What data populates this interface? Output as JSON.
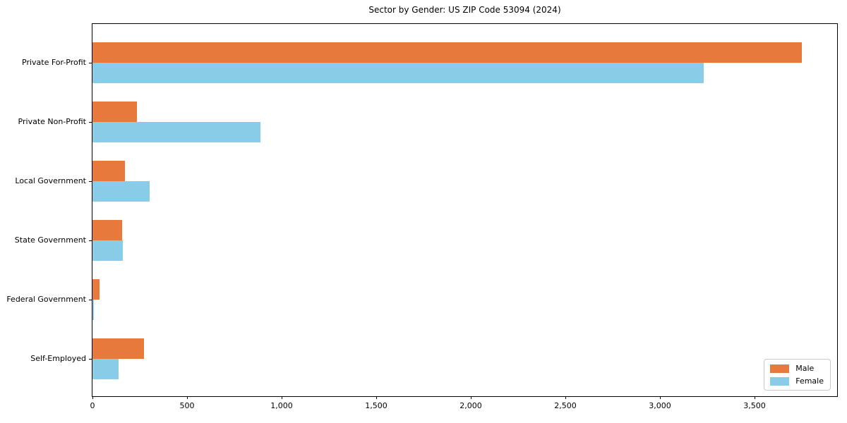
{
  "title": "Sector by Gender: US ZIP Code 53094 (2024)",
  "colors": {
    "male": "#e8793c",
    "female": "#88cce8",
    "axis": "#000000",
    "legend_border": "#c9c9c9",
    "background": "#ffffff"
  },
  "chart_data": {
    "type": "bar",
    "orientation": "horizontal",
    "title": "Sector by Gender: US ZIP Code 53094 (2024)",
    "xlabel": "",
    "ylabel": "",
    "categories": [
      "Private For-Profit",
      "Private Non-Profit",
      "Local Government",
      "State Government",
      "Federal Government",
      "Self-Employed"
    ],
    "series": [
      {
        "name": "Male",
        "color": "#e8793c",
        "values": [
          3750,
          235,
          172,
          157,
          38,
          271
        ]
      },
      {
        "name": "Female",
        "color": "#88cce8",
        "values": [
          3230,
          888,
          301,
          160,
          8,
          138
        ]
      }
    ],
    "xlim": [
      0,
      3935
    ],
    "xticks": [
      0,
      500,
      1000,
      1500,
      2000,
      2500,
      3000,
      3500
    ],
    "xtick_labels": [
      "0",
      "500",
      "1,000",
      "1,500",
      "2,000",
      "2,500",
      "3,000",
      "3,500"
    ],
    "grid": false,
    "legend": {
      "position": "lower right",
      "entries": [
        "Male",
        "Female"
      ]
    }
  }
}
